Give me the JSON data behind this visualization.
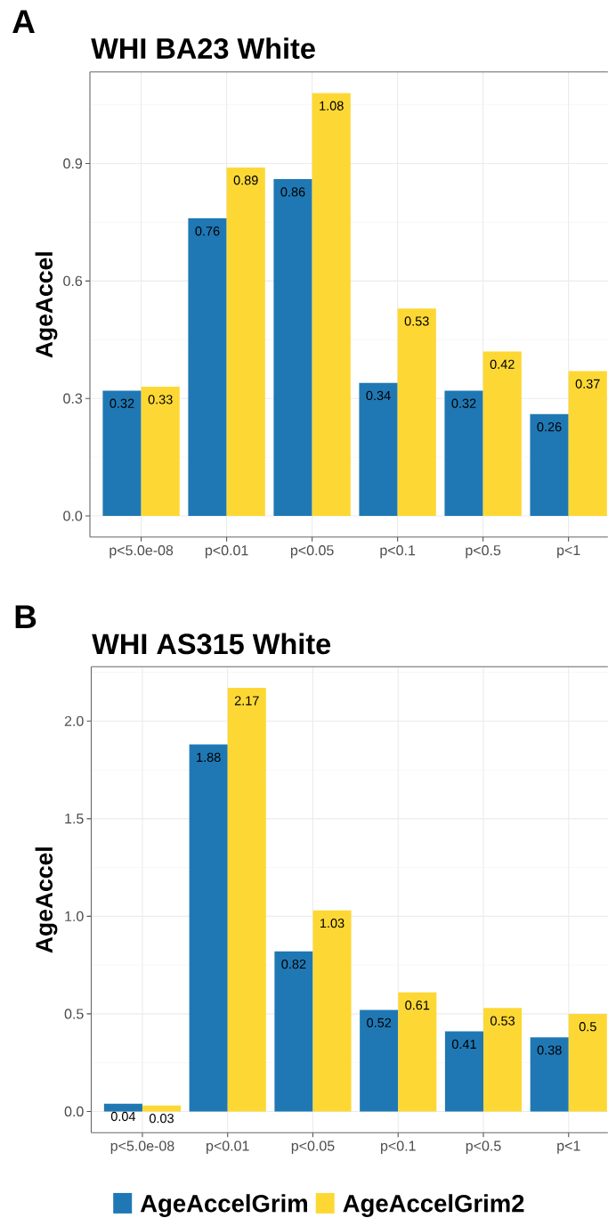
{
  "chart_data": [
    {
      "type": "bar",
      "title": "WHI BA23 White",
      "ylabel": "AgeAccel",
      "annotations": [
        "A"
      ],
      "categories": [
        "p<5.0e-08",
        "p<0.01",
        "p<0.05",
        "p<0.1",
        "p<0.5",
        "p<1"
      ],
      "series": [
        {
          "color": "#1f78b4",
          "values": [
            0.32,
            0.76,
            0.86,
            0.34,
            0.32,
            0.26
          ]
        },
        {
          "color": "#fdd835",
          "values": [
            0.33,
            0.89,
            1.08,
            0.53,
            0.42,
            0.37
          ]
        }
      ],
      "ylim": [
        -0.054,
        1.134
      ],
      "yticks": [
        {
          "value": 0,
          "label": "0.0"
        },
        0.3,
        0.6,
        0.9
      ],
      "grid": true,
      "data_labels": true
    },
    {
      "type": "bar",
      "title": "WHI AS315 White",
      "ylabel": "AgeAccel",
      "annotations": [
        "B"
      ],
      "categories": [
        "p<5.0e-08",
        "p<0.01",
        "p<0.05",
        "p<0.1",
        "p<0.5",
        "p<1"
      ],
      "series": [
        {
          "name": "AgeAccelGrim",
          "color": "#1f78b4",
          "values": [
            0.04,
            1.88,
            0.82,
            0.52,
            0.41,
            0.38
          ]
        },
        {
          "name": "AgeAccelGrim2",
          "color": "#fdd835",
          "values": [
            0.03,
            2.17,
            1.03,
            0.61,
            0.53,
            0.5
          ]
        }
      ],
      "ylim": [
        -0.1085,
        2.2785
      ],
      "yticks": [
        {
          "value": 0,
          "label": "0.0"
        },
        0.5,
        {
          "value": 1,
          "label": "1.0"
        },
        1.5,
        {
          "value": 2,
          "label": "2.0"
        }
      ],
      "grid": true,
      "data_labels": true,
      "legend": "bottom"
    }
  ]
}
